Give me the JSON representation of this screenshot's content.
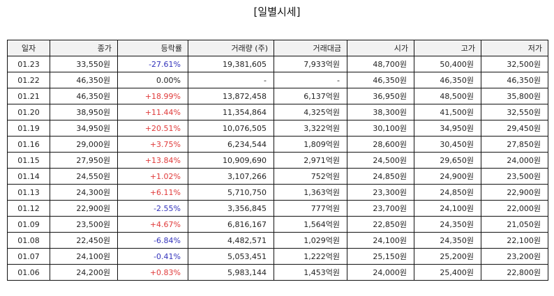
{
  "title": "[일별시세]",
  "colors": {
    "up": "#e03a3a",
    "down": "#3333bb",
    "flat": "#222222"
  },
  "table": {
    "columns": [
      "일자",
      "종가",
      "등락률",
      "거래량 (주)",
      "거래대금",
      "시가",
      "고가",
      "저가"
    ],
    "rows": [
      {
        "date": "01.23",
        "close": "33,550원",
        "change": "-27.61%",
        "direction": "down",
        "volume": "19,381,605",
        "value": "7,933억원",
        "open": "48,700원",
        "high": "50,400원",
        "low": "32,500원"
      },
      {
        "date": "01.22",
        "close": "46,350원",
        "change": "0.00%",
        "direction": "flat",
        "volume": "-",
        "value": "-",
        "open": "46,350원",
        "high": "46,350원",
        "low": "46,350원"
      },
      {
        "date": "01.21",
        "close": "46,350원",
        "change": "+18.99%",
        "direction": "up",
        "volume": "13,872,458",
        "value": "6,137억원",
        "open": "36,950원",
        "high": "48,500원",
        "low": "35,800원"
      },
      {
        "date": "01.20",
        "close": "38,950원",
        "change": "+11.44%",
        "direction": "up",
        "volume": "11,354,864",
        "value": "4,325억원",
        "open": "38,300원",
        "high": "41,500원",
        "low": "32,550원"
      },
      {
        "date": "01.19",
        "close": "34,950원",
        "change": "+20.51%",
        "direction": "up",
        "volume": "10,076,505",
        "value": "3,322억원",
        "open": "30,100원",
        "high": "34,950원",
        "low": "29,450원"
      },
      {
        "date": "01.16",
        "close": "29,000원",
        "change": "+3.75%",
        "direction": "up",
        "volume": "6,234,544",
        "value": "1,809억원",
        "open": "28,600원",
        "high": "30,450원",
        "low": "27,850원"
      },
      {
        "date": "01.15",
        "close": "27,950원",
        "change": "+13.84%",
        "direction": "up",
        "volume": "10,909,690",
        "value": "2,971억원",
        "open": "24,500원",
        "high": "29,650원",
        "low": "24,000원"
      },
      {
        "date": "01.14",
        "close": "24,550원",
        "change": "+1.02%",
        "direction": "up",
        "volume": "3,107,266",
        "value": "752억원",
        "open": "24,850원",
        "high": "24,900원",
        "low": "23,500원"
      },
      {
        "date": "01.13",
        "close": "24,300원",
        "change": "+6.11%",
        "direction": "up",
        "volume": "5,710,750",
        "value": "1,363억원",
        "open": "23,300원",
        "high": "24,850원",
        "low": "22,900원"
      },
      {
        "date": "01.12",
        "close": "22,900원",
        "change": "-2.55%",
        "direction": "down",
        "volume": "3,356,845",
        "value": "777억원",
        "open": "23,700원",
        "high": "24,100원",
        "low": "22,000원"
      },
      {
        "date": "01.09",
        "close": "23,500원",
        "change": "+4.67%",
        "direction": "up",
        "volume": "6,816,167",
        "value": "1,564억원",
        "open": "22,850원",
        "high": "24,350원",
        "low": "21,050원"
      },
      {
        "date": "01.08",
        "close": "22,450원",
        "change": "-6.84%",
        "direction": "down",
        "volume": "4,482,571",
        "value": "1,029억원",
        "open": "24,100원",
        "high": "24,350원",
        "low": "22,100원"
      },
      {
        "date": "01.07",
        "close": "24,100원",
        "change": "-0.41%",
        "direction": "down",
        "volume": "5,053,451",
        "value": "1,222억원",
        "open": "25,150원",
        "high": "25,200원",
        "low": "23,200원"
      },
      {
        "date": "01.06",
        "close": "24,200원",
        "change": "+0.83%",
        "direction": "up",
        "volume": "5,983,144",
        "value": "1,453억원",
        "open": "24,000원",
        "high": "25,400원",
        "low": "22,800원"
      }
    ]
  }
}
